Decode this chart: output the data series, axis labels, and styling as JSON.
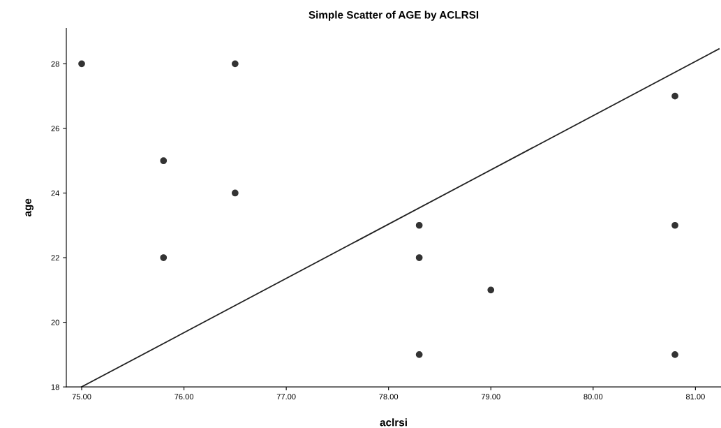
{
  "chart_data": {
    "type": "scatter",
    "title": "Simple Scatter of AGE by ACLRSI",
    "xlabel": "aclrsi",
    "ylabel": "age",
    "x": [
      75.0,
      75.8,
      75.8,
      76.5,
      76.5,
      78.3,
      78.3,
      78.3,
      79.0,
      80.8,
      80.8,
      80.8
    ],
    "series": [
      {
        "color": "#333333",
        "marker": "circle",
        "values": [
          28,
          25,
          22,
          28,
          24,
          23,
          22,
          19,
          21,
          27,
          23,
          19
        ]
      },
      {
        "type": "line",
        "color": "#222222",
        "marker": "none",
        "line_style": "solid",
        "x": [
          75.0,
          81.23
        ],
        "values": [
          18,
          28.46
        ]
      }
    ],
    "xlim": [
      74.85,
      81.25
    ],
    "ylim": [
      18,
      29.1
    ],
    "xticks": [
      {
        "value": 75,
        "label": "75.00"
      },
      {
        "value": 76,
        "label": "76.00"
      },
      {
        "value": 77,
        "label": "77.00"
      },
      {
        "value": 78,
        "label": "78.00"
      },
      {
        "value": 79,
        "label": "79.00"
      },
      {
        "value": 80,
        "label": "80.00"
      },
      {
        "value": 81,
        "label": "81.00"
      }
    ],
    "yticks": [
      18,
      20,
      22,
      24,
      26,
      28
    ],
    "grid": false,
    "legend": false
  }
}
